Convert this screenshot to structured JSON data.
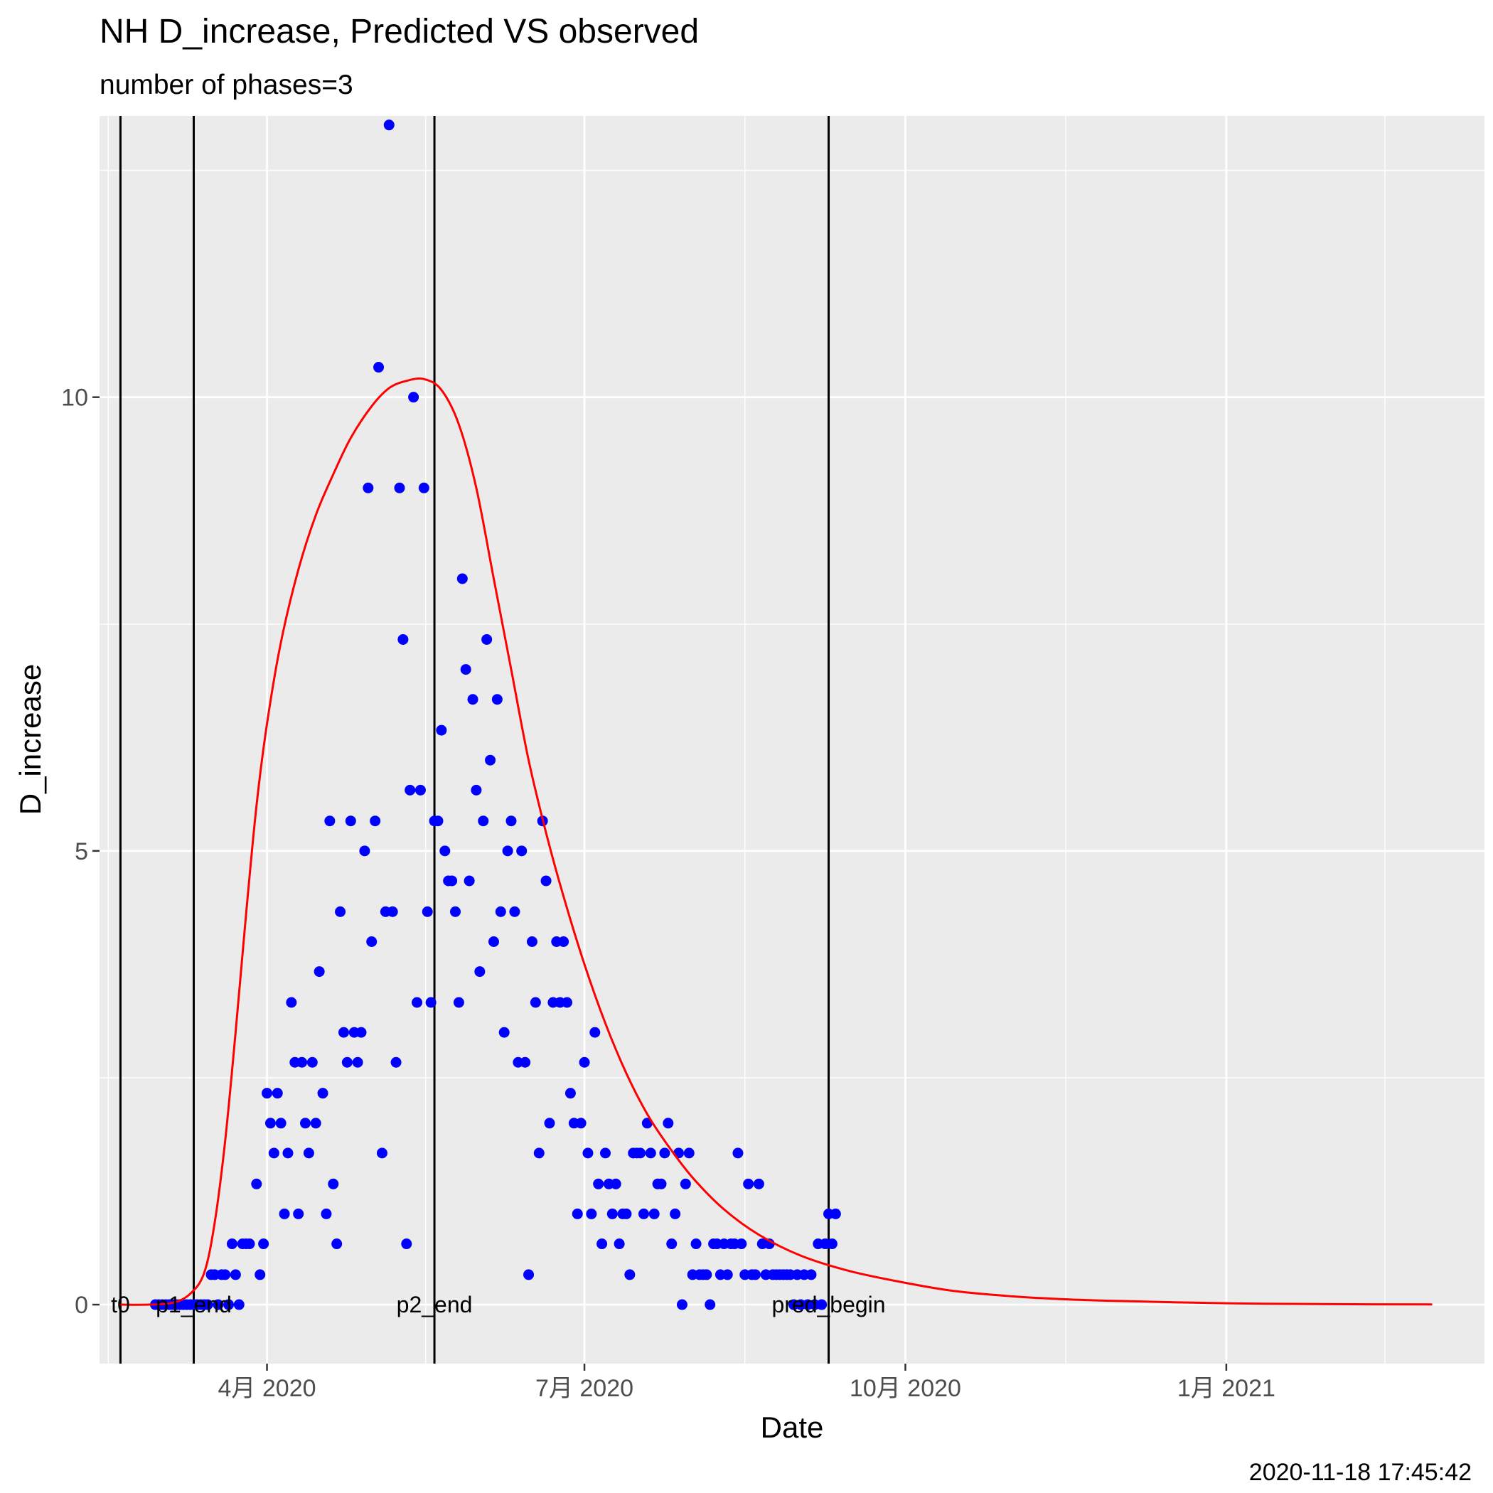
{
  "chart_data": {
    "type": "scatter",
    "title": "NH D_increase, Predicted VS observed",
    "subtitle": "number of phases=3",
    "xlabel": "Date",
    "ylabel": "D_increase",
    "caption": "2020-11-18 17:45:42",
    "xlim": [
      "2020-02-13",
      "2021-03-16"
    ],
    "ylim": [
      -0.65,
      13.1
    ],
    "x_ticks": [
      {
        "date": "2020-04-01",
        "label": "4月 2020"
      },
      {
        "date": "2020-07-01",
        "label": "7月 2020"
      },
      {
        "date": "2020-10-01",
        "label": "10月 2020"
      },
      {
        "date": "2021-01-01",
        "label": "1月 2021"
      }
    ],
    "y_ticks": [
      {
        "value": 0,
        "label": "0"
      },
      {
        "value": 5,
        "label": "5"
      },
      {
        "value": 10,
        "label": "10"
      }
    ],
    "grid": true,
    "colors": {
      "observed": "#0000ff",
      "predicted": "#ff0000",
      "vlines": "#000000",
      "panel": "#ebebeb",
      "grid": "#ffffff"
    },
    "vlines": [
      {
        "date": "2020-02-19",
        "label": "t0"
      },
      {
        "date": "2020-03-11",
        "label": "p1_end"
      },
      {
        "date": "2020-05-19",
        "label": "p2_end"
      },
      {
        "date": "2020-09-09",
        "label": "pred_begin"
      }
    ],
    "predicted": [
      [
        "2020-02-19",
        0
      ],
      [
        "2020-02-27",
        0
      ],
      [
        "2020-03-05",
        0.02
      ],
      [
        "2020-03-10",
        0.12
      ],
      [
        "2020-03-14",
        0.35
      ],
      [
        "2020-03-17",
        0.9
      ],
      [
        "2020-03-20",
        1.8
      ],
      [
        "2020-03-23",
        3.0
      ],
      [
        "2020-03-26",
        4.3
      ],
      [
        "2020-03-29",
        5.5
      ],
      [
        "2020-04-01",
        6.4
      ],
      [
        "2020-04-05",
        7.3
      ],
      [
        "2020-04-10",
        8.1
      ],
      [
        "2020-04-15",
        8.7
      ],
      [
        "2020-04-20",
        9.15
      ],
      [
        "2020-04-25",
        9.55
      ],
      [
        "2020-05-01",
        9.9
      ],
      [
        "2020-05-06",
        10.1
      ],
      [
        "2020-05-11",
        10.18
      ],
      [
        "2020-05-16",
        10.2
      ],
      [
        "2020-05-21",
        10.08
      ],
      [
        "2020-05-26",
        9.7
      ],
      [
        "2020-05-31",
        9.0
      ],
      [
        "2020-06-05",
        8.0
      ],
      [
        "2020-06-10",
        7.0
      ],
      [
        "2020-06-15",
        6.0
      ],
      [
        "2020-06-20",
        5.2
      ],
      [
        "2020-06-25",
        4.5
      ],
      [
        "2020-07-01",
        3.75
      ],
      [
        "2020-07-07",
        3.1
      ],
      [
        "2020-07-13",
        2.55
      ],
      [
        "2020-07-19",
        2.1
      ],
      [
        "2020-07-25",
        1.75
      ],
      [
        "2020-08-01",
        1.4
      ],
      [
        "2020-08-10",
        1.05
      ],
      [
        "2020-08-20",
        0.77
      ],
      [
        "2020-09-01",
        0.54
      ],
      [
        "2020-09-15",
        0.37
      ],
      [
        "2020-10-01",
        0.24
      ],
      [
        "2020-10-15",
        0.15
      ],
      [
        "2020-11-01",
        0.09
      ],
      [
        "2020-11-15",
        0.06
      ],
      [
        "2020-12-01",
        0.04
      ],
      [
        "2021-01-01",
        0.015
      ],
      [
        "2021-02-01",
        0.005
      ],
      [
        "2021-03-01",
        0.002
      ]
    ],
    "observed": [
      [
        "2020-02-29",
        0
      ],
      [
        "2020-03-01",
        0
      ],
      [
        "2020-03-02",
        0
      ],
      [
        "2020-03-03",
        0
      ],
      [
        "2020-03-04",
        0
      ],
      [
        "2020-03-05",
        0
      ],
      [
        "2020-03-06",
        0
      ],
      [
        "2020-03-07",
        0
      ],
      [
        "2020-03-08",
        0
      ],
      [
        "2020-03-09",
        0
      ],
      [
        "2020-03-10",
        0
      ],
      [
        "2020-03-11",
        0
      ],
      [
        "2020-03-12",
        0
      ],
      [
        "2020-03-13",
        0
      ],
      [
        "2020-03-14",
        0
      ],
      [
        "2020-03-15",
        0
      ],
      [
        "2020-03-16",
        0.33
      ],
      [
        "2020-03-17",
        0.33
      ],
      [
        "2020-03-18",
        0
      ],
      [
        "2020-03-19",
        0.33
      ],
      [
        "2020-03-20",
        0.33
      ],
      [
        "2020-03-21",
        0
      ],
      [
        "2020-03-22",
        0.67
      ],
      [
        "2020-03-23",
        0.33
      ],
      [
        "2020-03-24",
        0
      ],
      [
        "2020-03-25",
        0.67
      ],
      [
        "2020-03-26",
        0.67
      ],
      [
        "2020-03-27",
        0.67
      ],
      [
        "2020-03-29",
        1.33
      ],
      [
        "2020-03-30",
        0.33
      ],
      [
        "2020-03-31",
        0.67
      ],
      [
        "2020-04-01",
        2.33
      ],
      [
        "2020-04-02",
        2
      ],
      [
        "2020-04-03",
        1.67
      ],
      [
        "2020-04-04",
        2.33
      ],
      [
        "2020-04-05",
        2
      ],
      [
        "2020-04-06",
        1
      ],
      [
        "2020-04-07",
        1.67
      ],
      [
        "2020-04-08",
        3.33
      ],
      [
        "2020-04-09",
        2.67
      ],
      [
        "2020-04-10",
        1
      ],
      [
        "2020-04-11",
        2.67
      ],
      [
        "2020-04-12",
        2
      ],
      [
        "2020-04-13",
        1.67
      ],
      [
        "2020-04-14",
        2.67
      ],
      [
        "2020-04-15",
        2
      ],
      [
        "2020-04-16",
        3.67
      ],
      [
        "2020-04-17",
        2.33
      ],
      [
        "2020-04-18",
        1
      ],
      [
        "2020-04-19",
        5.33
      ],
      [
        "2020-04-20",
        1.33
      ],
      [
        "2020-04-21",
        0.67
      ],
      [
        "2020-04-22",
        4.33
      ],
      [
        "2020-04-23",
        3
      ],
      [
        "2020-04-24",
        2.67
      ],
      [
        "2020-04-25",
        5.33
      ],
      [
        "2020-04-26",
        3
      ],
      [
        "2020-04-27",
        2.67
      ],
      [
        "2020-04-28",
        3
      ],
      [
        "2020-04-29",
        5
      ],
      [
        "2020-04-30",
        9
      ],
      [
        "2020-05-01",
        4
      ],
      [
        "2020-05-02",
        5.33
      ],
      [
        "2020-05-03",
        10.33
      ],
      [
        "2020-05-04",
        1.67
      ],
      [
        "2020-05-05",
        4.33
      ],
      [
        "2020-05-06",
        13
      ],
      [
        "2020-05-07",
        4.33
      ],
      [
        "2020-05-08",
        2.67
      ],
      [
        "2020-05-09",
        9
      ],
      [
        "2020-05-10",
        7.33
      ],
      [
        "2020-05-11",
        0.67
      ],
      [
        "2020-05-12",
        5.67
      ],
      [
        "2020-05-13",
        10
      ],
      [
        "2020-05-14",
        3.33
      ],
      [
        "2020-05-15",
        5.67
      ],
      [
        "2020-05-16",
        9
      ],
      [
        "2020-05-17",
        4.33
      ],
      [
        "2020-05-18",
        3.33
      ],
      [
        "2020-05-19",
        5.33
      ],
      [
        "2020-05-20",
        5.33
      ],
      [
        "2020-05-21",
        6.33
      ],
      [
        "2020-05-22",
        5
      ],
      [
        "2020-05-23",
        4.67
      ],
      [
        "2020-05-24",
        4.67
      ],
      [
        "2020-05-25",
        4.33
      ],
      [
        "2020-05-26",
        3.33
      ],
      [
        "2020-05-27",
        8
      ],
      [
        "2020-05-28",
        7
      ],
      [
        "2020-05-29",
        4.67
      ],
      [
        "2020-05-30",
        6.67
      ],
      [
        "2020-05-31",
        5.67
      ],
      [
        "2020-06-01",
        3.67
      ],
      [
        "2020-06-02",
        5.33
      ],
      [
        "2020-06-03",
        7.33
      ],
      [
        "2020-06-04",
        6
      ],
      [
        "2020-06-05",
        4
      ],
      [
        "2020-06-06",
        6.67
      ],
      [
        "2020-06-07",
        4.33
      ],
      [
        "2020-06-08",
        3
      ],
      [
        "2020-06-09",
        5
      ],
      [
        "2020-06-10",
        5.33
      ],
      [
        "2020-06-11",
        4.33
      ],
      [
        "2020-06-12",
        2.67
      ],
      [
        "2020-06-13",
        5
      ],
      [
        "2020-06-14",
        2.67
      ],
      [
        "2020-06-15",
        0.33
      ],
      [
        "2020-06-16",
        4
      ],
      [
        "2020-06-17",
        3.33
      ],
      [
        "2020-06-18",
        1.67
      ],
      [
        "2020-06-19",
        5.33
      ],
      [
        "2020-06-20",
        4.67
      ],
      [
        "2020-06-21",
        2
      ],
      [
        "2020-06-22",
        3.33
      ],
      [
        "2020-06-23",
        4
      ],
      [
        "2020-06-24",
        3.33
      ],
      [
        "2020-06-25",
        4
      ],
      [
        "2020-06-26",
        3.33
      ],
      [
        "2020-06-27",
        2.33
      ],
      [
        "2020-06-28",
        2
      ],
      [
        "2020-06-29",
        1
      ],
      [
        "2020-06-30",
        2
      ],
      [
        "2020-07-01",
        2.67
      ],
      [
        "2020-07-02",
        1.67
      ],
      [
        "2020-07-03",
        1
      ],
      [
        "2020-07-04",
        3
      ],
      [
        "2020-07-05",
        1.33
      ],
      [
        "2020-07-06",
        0.67
      ],
      [
        "2020-07-07",
        1.67
      ],
      [
        "2020-07-08",
        1.33
      ],
      [
        "2020-07-09",
        1
      ],
      [
        "2020-07-10",
        1.33
      ],
      [
        "2020-07-11",
        0.67
      ],
      [
        "2020-07-12",
        1
      ],
      [
        "2020-07-13",
        1
      ],
      [
        "2020-07-14",
        0.33
      ],
      [
        "2020-07-15",
        1.67
      ],
      [
        "2020-07-16",
        1.67
      ],
      [
        "2020-07-17",
        1.67
      ],
      [
        "2020-07-18",
        1
      ],
      [
        "2020-07-19",
        2
      ],
      [
        "2020-07-20",
        1.67
      ],
      [
        "2020-07-21",
        1
      ],
      [
        "2020-07-22",
        1.33
      ],
      [
        "2020-07-23",
        1.33
      ],
      [
        "2020-07-24",
        1.67
      ],
      [
        "2020-07-25",
        2
      ],
      [
        "2020-07-26",
        0.67
      ],
      [
        "2020-07-27",
        1
      ],
      [
        "2020-07-28",
        1.67
      ],
      [
        "2020-07-29",
        0
      ],
      [
        "2020-07-30",
        1.33
      ],
      [
        "2020-07-31",
        1.67
      ],
      [
        "2020-08-01",
        0.33
      ],
      [
        "2020-08-02",
        0.67
      ],
      [
        "2020-08-03",
        0.33
      ],
      [
        "2020-08-04",
        0.33
      ],
      [
        "2020-08-05",
        0.33
      ],
      [
        "2020-08-06",
        0
      ],
      [
        "2020-08-07",
        0.67
      ],
      [
        "2020-08-08",
        0.67
      ],
      [
        "2020-08-09",
        0.33
      ],
      [
        "2020-08-10",
        0.67
      ],
      [
        "2020-08-11",
        0.33
      ],
      [
        "2020-08-12",
        0.67
      ],
      [
        "2020-08-13",
        0.67
      ],
      [
        "2020-08-14",
        1.67
      ],
      [
        "2020-08-15",
        0.67
      ],
      [
        "2020-08-16",
        0.33
      ],
      [
        "2020-08-17",
        1.33
      ],
      [
        "2020-08-18",
        0.33
      ],
      [
        "2020-08-19",
        0.33
      ],
      [
        "2020-08-20",
        1.33
      ],
      [
        "2020-08-21",
        0.67
      ],
      [
        "2020-08-22",
        0.33
      ],
      [
        "2020-08-23",
        0.67
      ],
      [
        "2020-08-24",
        0.33
      ],
      [
        "2020-08-25",
        0.33
      ],
      [
        "2020-08-26",
        0.33
      ],
      [
        "2020-08-27",
        0.33
      ],
      [
        "2020-08-28",
        0.33
      ],
      [
        "2020-08-29",
        0.33
      ],
      [
        "2020-08-30",
        0
      ],
      [
        "2020-08-31",
        0.33
      ],
      [
        "2020-09-01",
        0
      ],
      [
        "2020-09-02",
        0.33
      ],
      [
        "2020-09-03",
        0
      ],
      [
        "2020-09-04",
        0.33
      ],
      [
        "2020-09-05",
        0
      ],
      [
        "2020-09-06",
        0.67
      ],
      [
        "2020-09-07",
        0
      ],
      [
        "2020-09-08",
        0.67
      ],
      [
        "2020-09-09",
        1
      ],
      [
        "2020-09-10",
        0.67
      ],
      [
        "2020-09-11",
        1
      ]
    ]
  }
}
